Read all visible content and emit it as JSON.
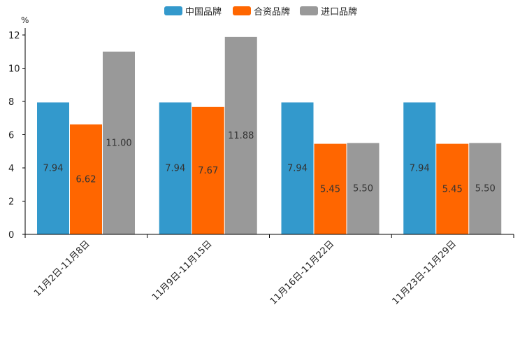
{
  "chart_data": {
    "type": "bar",
    "title": "",
    "ylabel": "%",
    "xlabel": "",
    "ylim": [
      0,
      12
    ],
    "yticks": [
      0,
      2,
      4,
      6,
      8,
      10,
      12
    ],
    "categories": [
      "11月2日-11月8日",
      "11月9日-11月15日",
      "11月16日-11月22日",
      "11月23日-11月29日"
    ],
    "series": [
      {
        "name": "中国品牌",
        "color": "#3399CC",
        "values": [
          7.94,
          7.94,
          7.94,
          7.94
        ],
        "labels": [
          "7.94",
          "7.94",
          "7.94",
          "7.94"
        ]
      },
      {
        "name": "合资品牌",
        "color": "#FF6600",
        "values": [
          6.62,
          7.67,
          5.45,
          5.45
        ],
        "labels": [
          "6.62",
          "7.67",
          "5.45",
          "5.45"
        ]
      },
      {
        "name": "进口品牌",
        "color": "#999999",
        "values": [
          11.0,
          11.88,
          5.5,
          5.5
        ],
        "labels": [
          "11.00",
          "11.88",
          "5.50",
          "5.50"
        ]
      }
    ],
    "legend_position": "top-center",
    "grid": false
  }
}
